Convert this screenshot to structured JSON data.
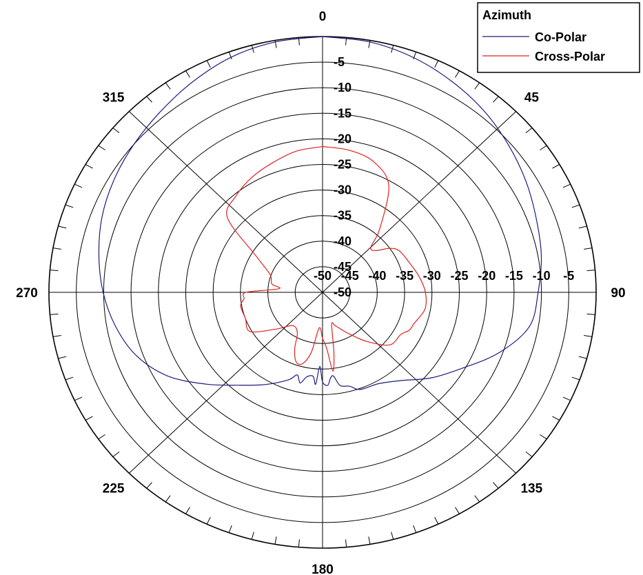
{
  "chart_data": {
    "type": "polar-line",
    "angle_unit": "degrees",
    "angle_zero": "top",
    "angle_direction": "clockwise",
    "radial_range": [
      -50,
      0
    ],
    "radial_step": 5,
    "radial_tick_labels": [
      "-50",
      "-45",
      "-40",
      "-35",
      "-30",
      "-25",
      "-20",
      "-15",
      "-10",
      "-5"
    ],
    "angle_tick_labels": [
      {
        "angle": 0,
        "label": "0"
      },
      {
        "angle": 45,
        "label": "45"
      },
      {
        "angle": 90,
        "label": "90"
      },
      {
        "angle": 135,
        "label": "135"
      },
      {
        "angle": 180,
        "label": "180"
      },
      {
        "angle": 225,
        "label": "225"
      },
      {
        "angle": 270,
        "label": "270"
      },
      {
        "angle": 315,
        "label": "315"
      }
    ],
    "spoke_angles": [
      0,
      45,
      90,
      135,
      180,
      225,
      270,
      315
    ],
    "minor_tick_step": 5,
    "legend": {
      "title": "Azimuth",
      "placement": "top-right",
      "entries": [
        {
          "label": "Co-Polar",
          "color": "#1a1a80"
        },
        {
          "label": "Cross-Polar",
          "color": "#e02020"
        }
      ]
    },
    "series": [
      {
        "name": "Co-Polar",
        "color": "#1a1a80",
        "points": [
          [
            0,
            0
          ],
          [
            10,
            -0.3
          ],
          [
            20,
            -1.2
          ],
          [
            30,
            -2.5
          ],
          [
            40,
            -3.9
          ],
          [
            50,
            -5.5
          ],
          [
            60,
            -7.0
          ],
          [
            70,
            -8.4
          ],
          [
            80,
            -9.4
          ],
          [
            90,
            -10.6
          ],
          [
            100,
            -11.6
          ],
          [
            110,
            -15.6
          ],
          [
            120,
            -20.4
          ],
          [
            130,
            -24.0
          ],
          [
            140,
            -27.5
          ],
          [
            150,
            -29.4
          ],
          [
            160,
            -29.8
          ],
          [
            165,
            -31.0
          ],
          [
            170,
            -31.5
          ],
          [
            173,
            -33.5
          ],
          [
            175,
            -33.2
          ],
          [
            177,
            -31.8
          ],
          [
            180,
            -32.5
          ],
          [
            182,
            -35.5
          ],
          [
            184,
            -32.0
          ],
          [
            186,
            -33.5
          ],
          [
            190,
            -33.2
          ],
          [
            193,
            -31.8
          ],
          [
            196,
            -33.2
          ],
          [
            200,
            -31.8
          ],
          [
            210,
            -29.2
          ],
          [
            220,
            -26.3
          ],
          [
            230,
            -22.1
          ],
          [
            240,
            -17.3
          ],
          [
            250,
            -13.8
          ],
          [
            260,
            -11.6
          ],
          [
            270,
            -9.9
          ],
          [
            280,
            -8.5
          ],
          [
            290,
            -7.1
          ],
          [
            300,
            -6.0
          ],
          [
            310,
            -5.0
          ],
          [
            320,
            -3.9
          ],
          [
            330,
            -2.5
          ],
          [
            340,
            -1.1
          ],
          [
            350,
            -0.3
          ],
          [
            360,
            0
          ]
        ]
      },
      {
        "name": "Cross-Polar",
        "color": "#e02020",
        "points": [
          [
            0,
            -21.5
          ],
          [
            10,
            -21.8
          ],
          [
            20,
            -22.8
          ],
          [
            30,
            -25.8
          ],
          [
            40,
            -33.7
          ],
          [
            45,
            -37.5
          ],
          [
            50,
            -37.3
          ],
          [
            55,
            -35.0
          ],
          [
            60,
            -33.8
          ],
          [
            70,
            -33.1
          ],
          [
            80,
            -32.1
          ],
          [
            90,
            -31.2
          ],
          [
            100,
            -31.0
          ],
          [
            110,
            -32.2
          ],
          [
            115,
            -32.5
          ],
          [
            120,
            -33.5
          ],
          [
            130,
            -34.0
          ],
          [
            140,
            -37.5
          ],
          [
            150,
            -40.8
          ],
          [
            160,
            -43.0
          ],
          [
            165,
            -43.5
          ],
          [
            170,
            -38.0
          ],
          [
            173,
            -34.5
          ],
          [
            176,
            -39.0
          ],
          [
            180,
            -41.0
          ],
          [
            185,
            -43.0
          ],
          [
            190,
            -38.0
          ],
          [
            195,
            -35.5
          ],
          [
            200,
            -35.7
          ],
          [
            205,
            -38.0
          ],
          [
            210,
            -40.8
          ],
          [
            220,
            -41.5
          ],
          [
            230,
            -38.8
          ],
          [
            240,
            -34.7
          ],
          [
            250,
            -35.0
          ],
          [
            260,
            -34.8
          ],
          [
            265,
            -35.6
          ],
          [
            270,
            -36.0
          ],
          [
            275,
            -42.0
          ],
          [
            280,
            -40.6
          ],
          [
            290,
            -39.8
          ],
          [
            300,
            -36.1
          ],
          [
            310,
            -27.3
          ],
          [
            320,
            -25.4
          ],
          [
            330,
            -24.1
          ],
          [
            340,
            -23.1
          ],
          [
            350,
            -22.0
          ],
          [
            360,
            -21.5
          ]
        ]
      }
    ]
  }
}
